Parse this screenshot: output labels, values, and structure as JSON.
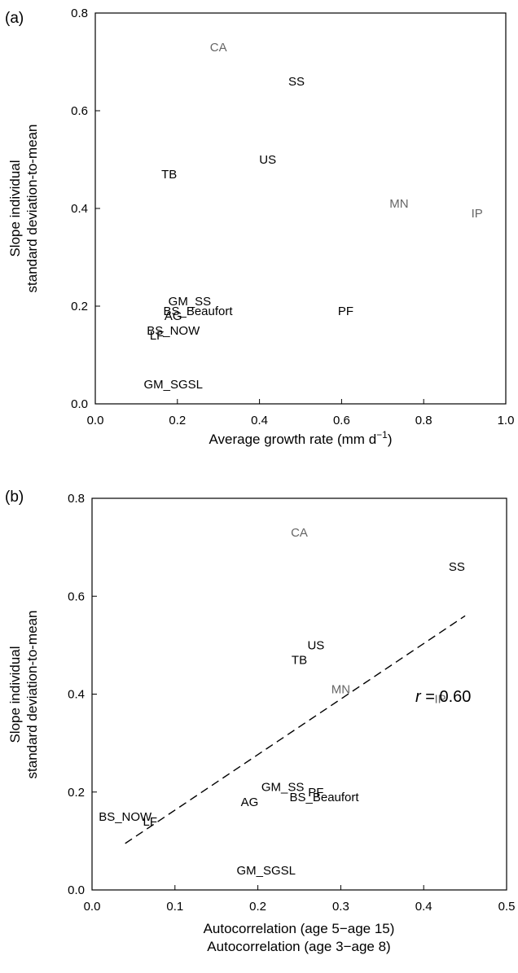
{
  "chart_data": [
    {
      "type": "scatter",
      "panel_label": "(a)",
      "xlabel": "Average growth rate (mm d",
      "xlabel_sup": "−1",
      "xlabel_end": ")",
      "ylabel_lines": [
        "Slope individual",
        "standard deviation-to-mean"
      ],
      "xlim": [
        0.0,
        1.0
      ],
      "ylim": [
        0.0,
        0.8
      ],
      "x_ticks": [
        0.0,
        0.2,
        0.4,
        0.6,
        0.8,
        1.0
      ],
      "x_tick_labels": [
        "0.0",
        "0.2",
        "0.4",
        "0.6",
        "0.8",
        "1.0"
      ],
      "y_ticks": [
        0.0,
        0.2,
        0.4,
        0.6,
        0.8
      ],
      "y_tick_labels": [
        "0.0",
        "0.2",
        "0.4",
        "0.6",
        "0.8"
      ],
      "points": [
        {
          "label": "CA",
          "x": 0.3,
          "y": 0.73,
          "color": "#666666"
        },
        {
          "label": "SS",
          "x": 0.49,
          "y": 0.66,
          "color": "#000000"
        },
        {
          "label": "US",
          "x": 0.42,
          "y": 0.5,
          "color": "#000000"
        },
        {
          "label": "TB",
          "x": 0.18,
          "y": 0.47,
          "color": "#000000"
        },
        {
          "label": "MN",
          "x": 0.74,
          "y": 0.41,
          "color": "#666666"
        },
        {
          "label": "IP",
          "x": 0.93,
          "y": 0.39,
          "color": "#666666"
        },
        {
          "label": "GM_SS",
          "x": 0.23,
          "y": 0.21,
          "color": "#000000"
        },
        {
          "label": "PF",
          "x": 0.61,
          "y": 0.19,
          "color": "#000000"
        },
        {
          "label": "BS_Beaufort",
          "x": 0.25,
          "y": 0.19,
          "color": "#000000"
        },
        {
          "label": "AG",
          "x": 0.19,
          "y": 0.18,
          "color": "#000000"
        },
        {
          "label": "BS_NOW",
          "x": 0.19,
          "y": 0.15,
          "color": "#000000"
        },
        {
          "label": "LF",
          "x": 0.15,
          "y": 0.14,
          "color": "#000000"
        },
        {
          "label": "GM_SGSL",
          "x": 0.19,
          "y": 0.04,
          "color": "#000000"
        }
      ]
    },
    {
      "type": "scatter",
      "panel_label": "(b)",
      "xlabel_lines": [
        "Autocorrelation (age 5−age 15)",
        "Autocorrelation (age 3−age 8)"
      ],
      "ylabel_lines": [
        "Slope individual",
        "standard deviation-to-mean"
      ],
      "xlim": [
        0.0,
        0.5
      ],
      "ylim": [
        0.0,
        0.8
      ],
      "x_ticks": [
        0.0,
        0.1,
        0.2,
        0.3,
        0.4,
        0.5
      ],
      "x_tick_labels": [
        "0.0",
        "0.1",
        "0.2",
        "0.3",
        "0.4",
        "0.5"
      ],
      "y_ticks": [
        0.0,
        0.2,
        0.4,
        0.6,
        0.8
      ],
      "y_tick_labels": [
        "0.0",
        "0.2",
        "0.4",
        "0.6",
        "0.8"
      ],
      "annotation_r_label": "r",
      "annotation_r_value": " = 0.60",
      "trend_line": {
        "x": [
          0.04,
          0.45
        ],
        "y": [
          0.095,
          0.56
        ]
      },
      "points": [
        {
          "label": "CA",
          "x": 0.25,
          "y": 0.73,
          "color": "#666666"
        },
        {
          "label": "SS",
          "x": 0.44,
          "y": 0.66,
          "color": "#000000"
        },
        {
          "label": "US",
          "x": 0.27,
          "y": 0.5,
          "color": "#000000"
        },
        {
          "label": "TB",
          "x": 0.25,
          "y": 0.47,
          "color": "#000000"
        },
        {
          "label": "MN",
          "x": 0.3,
          "y": 0.41,
          "color": "#666666"
        },
        {
          "label": "IP",
          "x": 0.42,
          "y": 0.39,
          "color": "#666666"
        },
        {
          "label": "GM_SS",
          "x": 0.23,
          "y": 0.21,
          "color": "#000000"
        },
        {
          "label": "PF",
          "x": 0.27,
          "y": 0.2,
          "color": "#000000"
        },
        {
          "label": "BS_Beaufort",
          "x": 0.28,
          "y": 0.19,
          "color": "#000000"
        },
        {
          "label": "AG",
          "x": 0.19,
          "y": 0.18,
          "color": "#000000"
        },
        {
          "label": "BS_NOW",
          "x": 0.04,
          "y": 0.15,
          "color": "#000000"
        },
        {
          "label": "LF",
          "x": 0.07,
          "y": 0.14,
          "color": "#000000"
        },
        {
          "label": "GM_SGSL",
          "x": 0.21,
          "y": 0.04,
          "color": "#000000"
        }
      ]
    }
  ]
}
